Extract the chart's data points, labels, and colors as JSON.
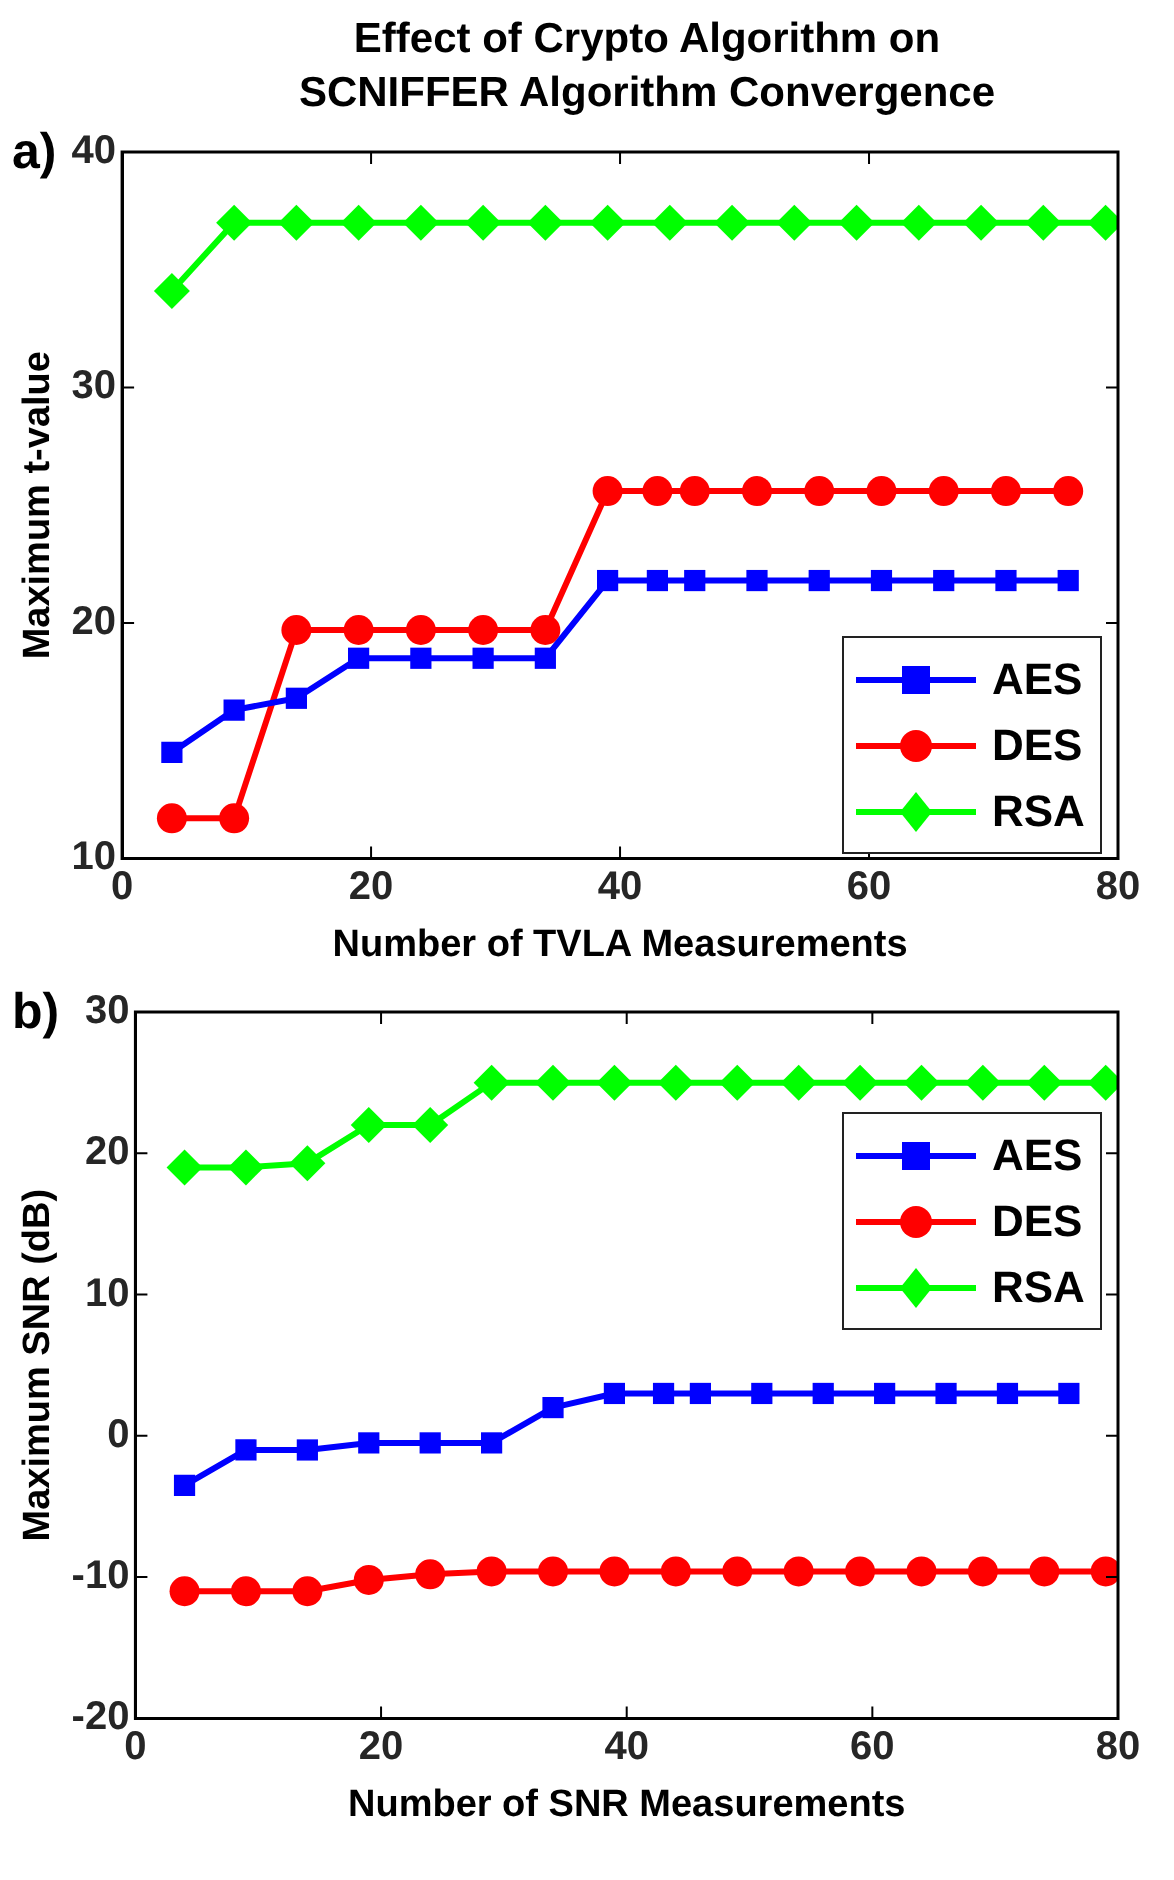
{
  "chart_data": [
    {
      "type": "line",
      "title": "Effect of Crypto Algorithm on\nSCNIFFER Algorithm Convergence",
      "xlabel": "Number of TVLA Measurements",
      "ylabel": "Maximum t-value",
      "annotations": [
        "a)"
      ],
      "xlim": [
        0,
        80
      ],
      "xticks": [
        0,
        20,
        40,
        60,
        80
      ],
      "ylim": [
        10,
        40
      ],
      "yticks": [
        10,
        20,
        30,
        40
      ],
      "grid": false,
      "legend": "bottom right",
      "line_style": "solid",
      "series": [
        {
          "name": "AES",
          "color": "#0000ff",
          "marker": "square",
          "x": [
            4,
            9,
            14,
            19,
            24,
            29,
            34,
            39,
            43,
            46,
            51,
            56,
            61,
            66,
            71,
            76
          ],
          "values": [
            14.5,
            16.3,
            16.8,
            18.5,
            18.5,
            18.5,
            18.5,
            21.8,
            21.8,
            21.8,
            21.8,
            21.8,
            21.8,
            21.8,
            21.8,
            21.8
          ]
        },
        {
          "name": "DES",
          "color": "#ff0000",
          "marker": "circle",
          "x": [
            4,
            9,
            14,
            19,
            24,
            29,
            34,
            39,
            43,
            46,
            51,
            56,
            61,
            66,
            71,
            76
          ],
          "values": [
            11.7,
            11.7,
            19.7,
            19.7,
            19.7,
            19.7,
            19.7,
            25.6,
            25.6,
            25.6,
            25.6,
            25.6,
            25.6,
            25.6,
            25.6,
            25.6
          ]
        },
        {
          "name": "RSA",
          "color": "#00ff00",
          "marker": "diamond",
          "x": [
            4,
            9,
            14,
            19,
            24,
            29,
            34,
            39,
            44,
            49,
            54,
            59,
            64,
            69,
            74,
            79
          ],
          "values": [
            34.1,
            37,
            37,
            37,
            37,
            37,
            37,
            37,
            37,
            37,
            37,
            37,
            37,
            37,
            37,
            37
          ]
        }
      ]
    },
    {
      "type": "line",
      "xlabel": "Number of SNR Measurements",
      "ylabel": "Maximum SNR (dB)",
      "annotations": [
        "b)"
      ],
      "xlim": [
        0,
        80
      ],
      "xticks": [
        0,
        20,
        40,
        60,
        80
      ],
      "ylim": [
        -20,
        30
      ],
      "yticks": [
        -20,
        -10,
        0,
        10,
        20,
        30
      ],
      "grid": false,
      "legend": "top right",
      "line_style": "solid",
      "series": [
        {
          "name": "AES",
          "color": "#0000ff",
          "marker": "square",
          "x": [
            4,
            9,
            14,
            19,
            24,
            29,
            34,
            39,
            43,
            46,
            51,
            56,
            61,
            66,
            71,
            76
          ],
          "values": [
            -3.5,
            -1,
            -1,
            -0.5,
            -0.5,
            -0.5,
            2,
            3,
            3,
            3,
            3,
            3,
            3,
            3,
            3,
            3
          ]
        },
        {
          "name": "DES",
          "color": "#ff0000",
          "marker": "circle",
          "x": [
            4,
            9,
            14,
            19,
            24,
            29,
            34,
            39,
            44,
            49,
            54,
            59,
            64,
            69,
            74,
            79
          ],
          "values": [
            -11,
            -11,
            -11,
            -10.2,
            -9.8,
            -9.6,
            -9.6,
            -9.6,
            -9.6,
            -9.6,
            -9.6,
            -9.6,
            -9.6,
            -9.6,
            -9.6,
            -9.6
          ]
        },
        {
          "name": "RSA",
          "color": "#00ff00",
          "marker": "diamond",
          "x": [
            4,
            9,
            14,
            19,
            24,
            29,
            34,
            39,
            44,
            49,
            54,
            59,
            64,
            69,
            74,
            79
          ],
          "values": [
            19,
            19,
            19.3,
            22,
            22,
            25,
            25,
            25,
            25,
            25,
            25,
            25,
            25,
            25,
            25,
            25
          ]
        }
      ]
    }
  ]
}
